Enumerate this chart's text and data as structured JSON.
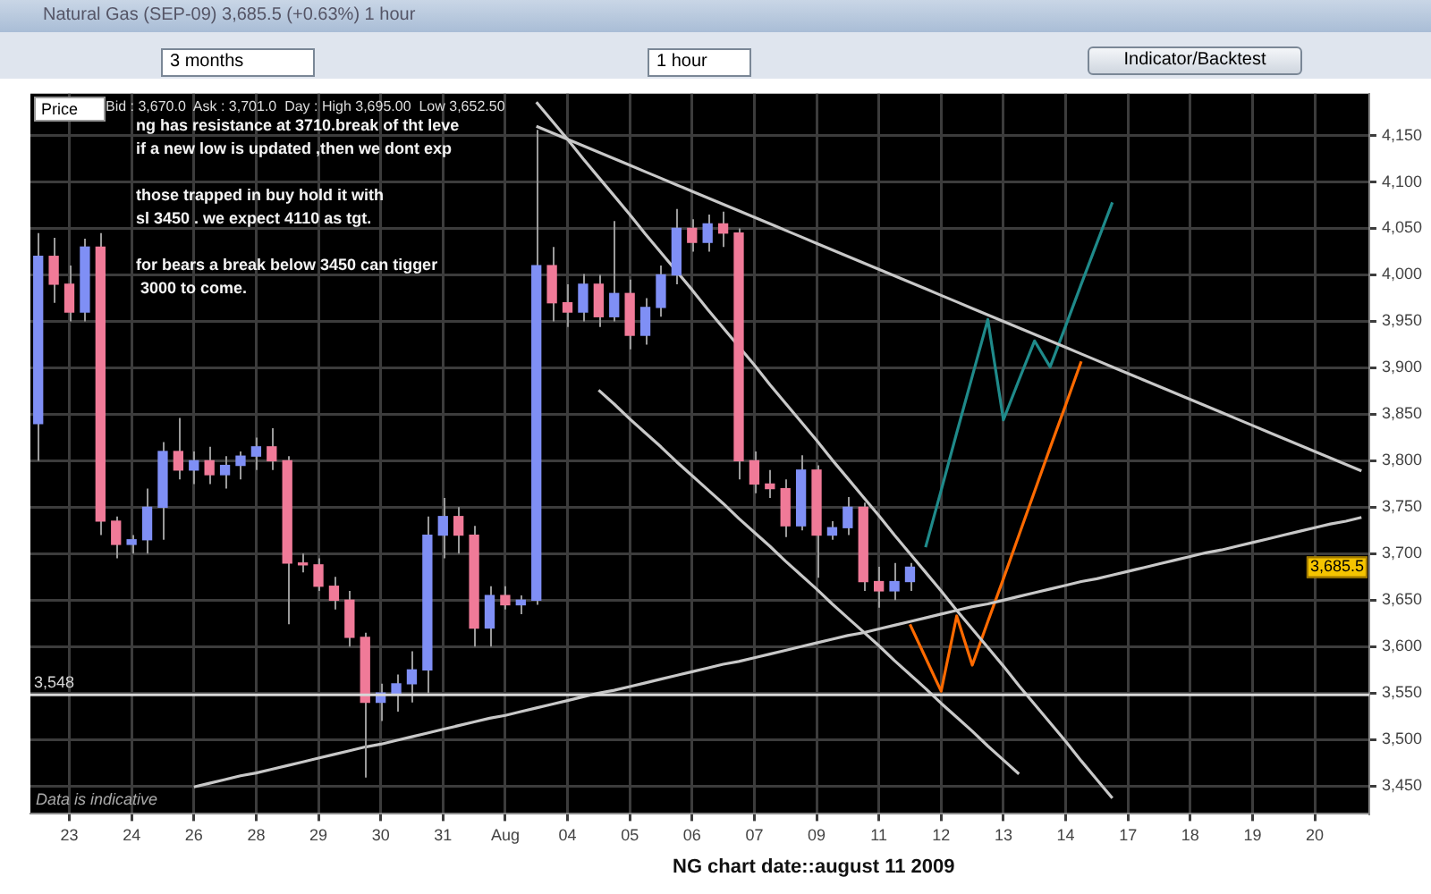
{
  "chart_data": {
    "type": "candlestick",
    "title": "Natural Gas (SEP-09) 3,685.5 (+0.63%) 1 hour",
    "categories": [
      null,
      null,
      "23",
      null,
      null,
      null,
      "24",
      null,
      null,
      null,
      "26",
      null,
      null,
      null,
      "28",
      null,
      null,
      null,
      "29",
      null,
      null,
      null,
      "30",
      null,
      null,
      null,
      "31",
      null,
      null,
      null,
      "Aug",
      null,
      null,
      null,
      "04",
      null,
      null,
      null,
      "05",
      null,
      null,
      null,
      "06",
      null,
      null,
      null,
      "07",
      null,
      null,
      null,
      "09",
      null,
      null,
      null,
      "11",
      null,
      null,
      null,
      "12",
      null,
      null,
      null,
      "13",
      null,
      null,
      null,
      "14",
      null,
      null,
      null,
      "17",
      null,
      null,
      null,
      "18",
      null,
      null,
      null,
      "19",
      null,
      null,
      null,
      "20",
      null,
      null,
      null
    ],
    "ylim": [
      3420,
      4195
    ],
    "yticks": [
      {
        "value": 3450,
        "label": "3,450"
      },
      {
        "value": 3500,
        "label": "3,500"
      },
      {
        "value": 3550,
        "label": "3,550"
      },
      {
        "value": 3600,
        "label": "3,600"
      },
      {
        "value": 3650,
        "label": "3,650"
      },
      {
        "value": 3700,
        "label": "3,700"
      },
      {
        "value": 3750,
        "label": "3,750"
      },
      {
        "value": 3800,
        "label": "3,800"
      },
      {
        "value": 3850,
        "label": "3,850"
      },
      {
        "value": 3900,
        "label": "3,900"
      },
      {
        "value": 3950,
        "label": "3,950"
      },
      {
        "value": 4000,
        "label": "4,000"
      },
      {
        "value": 4050,
        "label": "4,050"
      },
      {
        "value": 4100,
        "label": "4,100"
      },
      {
        "value": 4150,
        "label": "4,150"
      }
    ],
    "grid": true,
    "ohlc": [
      [
        3840,
        4045,
        3800,
        4020
      ],
      [
        4020,
        4040,
        3970,
        3990
      ],
      [
        3990,
        4010,
        3950,
        3960
      ],
      [
        3960,
        4039,
        3950,
        4030
      ],
      [
        4030,
        4045,
        3720,
        3735
      ],
      [
        3735,
        3740,
        3695,
        3710
      ],
      [
        3710,
        3720,
        3700,
        3715
      ],
      [
        3715,
        3770,
        3700,
        3750
      ],
      [
        3750,
        3820,
        3715,
        3810
      ],
      [
        3810,
        3846,
        3780,
        3790
      ],
      [
        3790,
        3810,
        3775,
        3800
      ],
      [
        3800,
        3815,
        3775,
        3785
      ],
      [
        3785,
        3805,
        3770,
        3795
      ],
      [
        3795,
        3810,
        3780,
        3805
      ],
      [
        3805,
        3825,
        3790,
        3815
      ],
      [
        3815,
        3835,
        3790,
        3800
      ],
      [
        3800,
        3805,
        3624,
        3690
      ],
      [
        3690,
        3700,
        3680,
        3688
      ],
      [
        3688,
        3695,
        3660,
        3665
      ],
      [
        3665,
        3675,
        3640,
        3650
      ],
      [
        3650,
        3660,
        3600,
        3610
      ],
      [
        3610,
        3615,
        3459,
        3540
      ],
      [
        3540,
        3560,
        3520,
        3550
      ],
      [
        3550,
        3570,
        3530,
        3560
      ],
      [
        3560,
        3595,
        3540,
        3575
      ],
      [
        3575,
        3740,
        3550,
        3720
      ],
      [
        3720,
        3760,
        3695,
        3740
      ],
      [
        3740,
        3750,
        3700,
        3720
      ],
      [
        3720,
        3730,
        3600,
        3620
      ],
      [
        3620,
        3665,
        3600,
        3655
      ],
      [
        3655,
        3665,
        3640,
        3645
      ],
      [
        3645,
        3655,
        3635,
        3650
      ],
      [
        3650,
        4156,
        3645,
        4010
      ],
      [
        4010,
        4030,
        3950,
        3970
      ],
      [
        3970,
        3990,
        3944,
        3960
      ],
      [
        3960,
        4001,
        3950,
        3990
      ],
      [
        3990,
        4000,
        3944,
        3955
      ],
      [
        3955,
        4058,
        3950,
        3980
      ],
      [
        3980,
        3995,
        3920,
        3935
      ],
      [
        3935,
        3975,
        3925,
        3965
      ],
      [
        3965,
        4010,
        3955,
        4000
      ],
      [
        4000,
        4071,
        3990,
        4050
      ],
      [
        4050,
        4060,
        4025,
        4035
      ],
      [
        4035,
        4065,
        4025,
        4055
      ],
      [
        4055,
        4068,
        4030,
        4045
      ],
      [
        4045,
        4050,
        3780,
        3800
      ],
      [
        3800,
        3810,
        3765,
        3775
      ],
      [
        3775,
        3790,
        3760,
        3770
      ],
      [
        3770,
        3780,
        3718,
        3730
      ],
      [
        3730,
        3806,
        3725,
        3790
      ],
      [
        3790,
        3795,
        3674,
        3720
      ],
      [
        3720,
        3735,
        3715,
        3728
      ],
      [
        3728,
        3761,
        3720,
        3750
      ],
      [
        3750,
        3755,
        3660,
        3670
      ],
      [
        3670,
        3686,
        3642,
        3660
      ],
      [
        3660,
        3690,
        3650,
        3670
      ],
      [
        3670,
        3690,
        3660,
        3685.5
      ],
      null,
      null,
      null,
      null,
      null,
      null,
      null,
      null,
      null,
      null,
      null,
      null,
      null,
      null,
      null,
      null,
      null,
      null,
      null,
      null,
      null,
      null,
      null,
      null,
      null,
      null,
      null,
      null,
      null
    ],
    "colors": [
      "#7f8ff5",
      "#f07a98",
      "#f07a98",
      "#7f8ff5",
      "#f07a98",
      "#f07a98",
      "#7f8ff5",
      "#7f8ff5",
      "#7f8ff5",
      "#f07a98",
      "#7f8ff5",
      "#f07a98",
      "#7f8ff5",
      "#7f8ff5",
      "#7f8ff5",
      "#f07a98",
      "#f07a98",
      "#f07a98",
      "#f07a98",
      "#f07a98",
      "#f07a98",
      "#f07a98",
      "#7f8ff5",
      "#7f8ff5",
      "#7f8ff5",
      "#7f8ff5",
      "#7f8ff5",
      "#f07a98",
      "#f07a98",
      "#7f8ff5",
      "#f07a98",
      "#7f8ff5",
      "#7f8ff5",
      "#f07a98",
      "#f07a98",
      "#7f8ff5",
      "#f07a98",
      "#7f8ff5",
      "#f07a98",
      "#7f8ff5",
      "#7f8ff5",
      "#7f8ff5",
      "#f07a98",
      "#7f8ff5",
      "#f07a98",
      "#f07a98",
      "#f07a98",
      "#f07a98",
      "#f07a98",
      "#7f8ff5",
      "#f07a98",
      "#7f8ff5",
      "#7f8ff5",
      "#f07a98",
      "#f07a98",
      "#7f8ff5",
      "#7f8ff5",
      null,
      null,
      null,
      null,
      null,
      null,
      null,
      null,
      null,
      null,
      null,
      null,
      null,
      null,
      null,
      null,
      null,
      null,
      null,
      null,
      null,
      null,
      null,
      null,
      null,
      null,
      null,
      null,
      null
    ],
    "series": [
      {
        "type": "line",
        "color": "#c8c8c8",
        "values": [
          null,
          null,
          null,
          null,
          null,
          null,
          null,
          null,
          null,
          null,
          null,
          null,
          null,
          null,
          null,
          null,
          null,
          null,
          null,
          null,
          null,
          null,
          null,
          null,
          null,
          null,
          null,
          null,
          null,
          null,
          null,
          null,
          4160,
          4153,
          4146,
          4139,
          4132,
          4125,
          4118,
          4111,
          4104,
          4097,
          4090,
          4083,
          4076,
          4069,
          4062,
          4055,
          4048,
          4041,
          4034,
          4027,
          4020,
          4013,
          4006,
          3999,
          3992,
          3985,
          3978,
          3971,
          3964,
          3957,
          3950,
          3943,
          3936,
          3929,
          3922,
          3915,
          3908,
          3901,
          3894,
          3887,
          3880,
          3873,
          3866,
          3859,
          3852,
          3845,
          3838,
          3831,
          3824,
          3817,
          3810,
          3803,
          3796,
          3789
        ]
      },
      {
        "type": "line",
        "color": "#c8c8c8",
        "values": [
          null,
          null,
          null,
          null,
          null,
          null,
          null,
          null,
          null,
          null,
          null,
          null,
          null,
          null,
          null,
          null,
          null,
          null,
          null,
          null,
          null,
          null,
          null,
          null,
          null,
          null,
          null,
          null,
          null,
          null,
          null,
          null,
          4186,
          4166,
          4146,
          4125,
          4105,
          4085,
          4065,
          4044,
          4024,
          4004,
          3984,
          3963,
          3943,
          3923,
          3903,
          3882,
          3862,
          3842,
          3822,
          3801,
          3781,
          3761,
          3741,
          3720,
          3700,
          3680,
          3660,
          3639,
          3619,
          3599,
          3579,
          3558,
          3538,
          3518,
          3498,
          3477,
          3457,
          3437,
          null,
          null,
          null,
          null,
          null,
          null,
          null,
          null,
          null,
          null,
          null,
          null,
          null,
          null,
          null,
          null
        ]
      },
      {
        "type": "line",
        "color": "#c8c8c8",
        "values": [
          null,
          null,
          null,
          null,
          null,
          null,
          null,
          null,
          null,
          null,
          null,
          null,
          null,
          null,
          null,
          null,
          null,
          null,
          null,
          null,
          null,
          null,
          null,
          null,
          null,
          null,
          null,
          null,
          null,
          null,
          null,
          null,
          null,
          null,
          null,
          null,
          3876,
          3861,
          3845,
          3830,
          3815,
          3799,
          3784,
          3769,
          3754,
          3738,
          3723,
          3708,
          3692,
          3677,
          3662,
          3646,
          3631,
          3616,
          3601,
          3585,
          3570,
          3555,
          3539,
          3524,
          3509,
          3493,
          3478,
          3463,
          null,
          null,
          null,
          null,
          null,
          null,
          null,
          null,
          null,
          null,
          null,
          null,
          null,
          null,
          null,
          null,
          null,
          null,
          null,
          null,
          null,
          null
        ]
      },
      {
        "type": "line",
        "color": "#c8c8c8",
        "values": [
          null,
          null,
          null,
          null,
          null,
          null,
          null,
          null,
          null,
          null,
          3449,
          3453,
          3457,
          3461,
          3464,
          3468,
          3472,
          3476,
          3480,
          3484,
          3488,
          3492,
          3495,
          3499,
          3503,
          3507,
          3511,
          3515,
          3519,
          3523,
          3526,
          3530,
          3534,
          3538,
          3542,
          3546,
          3550,
          3553,
          3557,
          3561,
          3565,
          3569,
          3573,
          3577,
          3581,
          3584,
          3588,
          3592,
          3596,
          3600,
          3604,
          3608,
          3612,
          3615,
          3619,
          3623,
          3627,
          3631,
          3635,
          3639,
          3643,
          3646,
          3650,
          3654,
          3658,
          3662,
          3666,
          3670,
          3673,
          3677,
          3681,
          3685,
          3689,
          3693,
          3697,
          3701,
          3704,
          3708,
          3712,
          3716,
          3720,
          3724,
          3728,
          3732,
          3735,
          3739
        ]
      },
      {
        "type": "line",
        "color": "#1f8a8a",
        "values": [
          null,
          null,
          null,
          null,
          null,
          null,
          null,
          null,
          null,
          null,
          null,
          null,
          null,
          null,
          null,
          null,
          null,
          null,
          null,
          null,
          null,
          null,
          null,
          null,
          null,
          null,
          null,
          null,
          null,
          null,
          null,
          null,
          null,
          null,
          null,
          null,
          null,
          null,
          null,
          null,
          null,
          null,
          null,
          null,
          null,
          null,
          null,
          null,
          null,
          null,
          null,
          null,
          null,
          null,
          null,
          null,
          null,
          3707,
          3768,
          3830,
          3891,
          3952,
          3844,
          3887,
          3929,
          3901,
          3945,
          3990,
          4034,
          4078,
          null,
          null,
          null,
          null,
          null,
          null,
          null,
          null,
          null,
          null,
          null,
          null,
          null,
          null,
          null,
          null
        ]
      },
      {
        "type": "line",
        "color": "#ff6a00",
        "values": [
          null,
          null,
          null,
          null,
          null,
          null,
          null,
          null,
          null,
          null,
          null,
          null,
          null,
          null,
          null,
          null,
          null,
          null,
          null,
          null,
          null,
          null,
          null,
          null,
          null,
          null,
          null,
          null,
          null,
          null,
          null,
          null,
          null,
          null,
          null,
          null,
          null,
          null,
          null,
          null,
          null,
          null,
          null,
          null,
          null,
          null,
          null,
          null,
          null,
          null,
          null,
          null,
          null,
          null,
          null,
          null,
          3624,
          3588,
          3552,
          3633,
          3580,
          3627,
          3673,
          3720,
          3767,
          3814,
          3860,
          3907,
          null,
          null,
          null,
          null,
          null,
          null,
          null,
          null,
          null,
          null,
          null,
          null,
          null,
          null,
          null,
          null,
          null,
          null
        ]
      }
    ],
    "ref_lines": [
      {
        "axis": "y",
        "value": 3548,
        "label": "3,548",
        "color": "#d8d8d8"
      }
    ],
    "annotations": [
      "Price",
      "Bid : 3,670.0  Ask : 3,701.0  Day : High 3,695.00  Low 3,652.50",
      "ng has resistance at 3710.break of tht leve\nif a new low is updated ,then we dont exp\n\nthose trapped in buy hold it with\nsl 3450 . we expect 4110 as tgt.\n\nfor bears a break below 3450 can tigger\n 3000 to come.",
      "Data is indicative",
      "NG chart date::august 11 2009",
      "3 months",
      "1 hour",
      "Indicator/Backtest",
      {
        "text": "3,685.5",
        "y": 3685.5
      }
    ]
  }
}
